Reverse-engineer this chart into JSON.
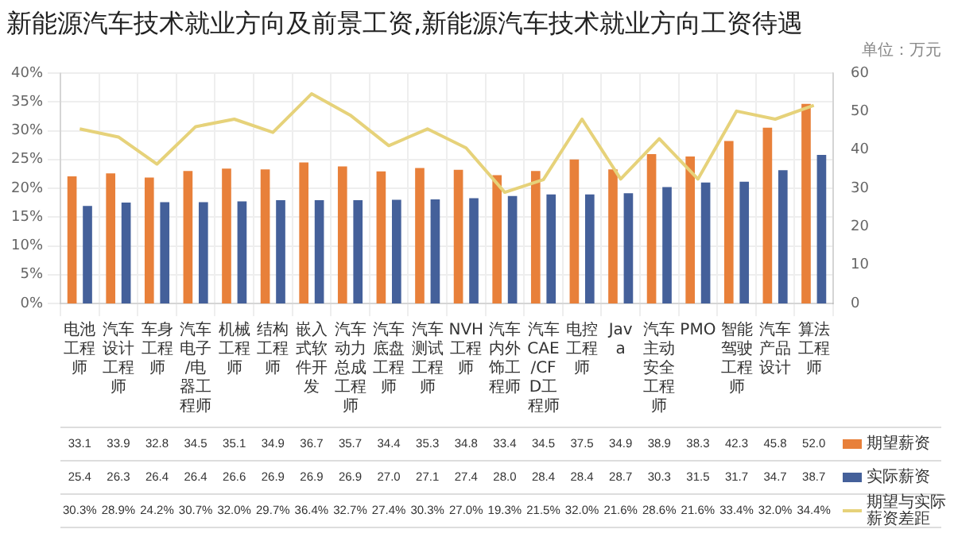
{
  "chart_data": {
    "type": "bar",
    "title": "新能源汽车技术就业方向及前景工资,新能源汽车技术就业方向工资待遇",
    "categories": [
      "电池工程师",
      "汽车设计工程师",
      "车身工程师",
      "汽车电子/电器工程师",
      "机械工程师",
      "结构工程师",
      "嵌入式软件开发",
      "汽车动力总成工程师",
      "汽车底盘工程师",
      "汽车测试工程师",
      "NVH工程师",
      "汽车内外饰工程师",
      "汽车CAE/CFD工程师",
      "电控工程师",
      "Java",
      "汽车主动安全工程师",
      "PMO",
      "智能驾驶工程师",
      "汽车产品设计",
      "算法工程师"
    ],
    "series": [
      {
        "name": "期望薪资",
        "color": "#e8803a",
        "axis": "y2",
        "values": [
          33.1,
          33.9,
          32.8,
          34.5,
          35.1,
          34.9,
          36.7,
          35.7,
          34.4,
          35.3,
          34.8,
          33.4,
          34.5,
          37.5,
          34.9,
          38.9,
          38.3,
          42.3,
          45.8,
          52.0
        ],
        "value_labels": [
          "33.1",
          "33.9",
          "32.8",
          "34.5",
          "35.1",
          "34.9",
          "36.7",
          "35.7",
          "34.4",
          "35.3",
          "34.8",
          "33.4",
          "34.5",
          "37.5",
          "34.9",
          "38.9",
          "38.3",
          "42.3",
          "45.8",
          "52.0"
        ]
      },
      {
        "name": "实际薪资",
        "color": "#44609a",
        "axis": "y2",
        "values": [
          25.4,
          26.3,
          26.4,
          26.4,
          26.6,
          26.9,
          26.9,
          26.9,
          27.0,
          27.1,
          27.4,
          28.0,
          28.4,
          28.4,
          28.7,
          30.3,
          31.5,
          31.7,
          34.7,
          38.7
        ],
        "value_labels": [
          "25.4",
          "26.3",
          "26.4",
          "26.4",
          "26.6",
          "26.9",
          "26.9",
          "26.9",
          "27.0",
          "27.1",
          "27.4",
          "28.0",
          "28.4",
          "28.4",
          "28.7",
          "30.3",
          "31.5",
          "31.7",
          "34.7",
          "38.7"
        ]
      },
      {
        "name": "期望与实际薪资差距",
        "type": "line",
        "color": "#e6d27a",
        "marker": "none",
        "values": [
          30.3,
          28.9,
          24.2,
          30.7,
          32.0,
          29.7,
          36.4,
          32.7,
          27.4,
          30.3,
          27.0,
          19.3,
          21.5,
          32.0,
          21.6,
          28.6,
          21.6,
          33.4,
          32.0,
          34.4
        ],
        "value_labels": [
          "30.3%",
          "28.9%",
          "24.2%",
          "30.7%",
          "32.0%",
          "29.7%",
          "36.4%",
          "32.7%",
          "27.4%",
          "30.3%",
          "27.0%",
          "19.3%",
          "21.5%",
          "32.0%",
          "21.6%",
          "28.6%",
          "21.6%",
          "33.4%",
          "32.0%",
          "34.4%"
        ]
      }
    ],
    "ylim": [
      0,
      40
    ],
    "yticks": [
      {
        "value": 0,
        "label": "0%"
      },
      {
        "value": 5,
        "label": "5%"
      },
      {
        "value": 10,
        "label": "10%"
      },
      {
        "value": 15,
        "label": "15%"
      },
      {
        "value": 20,
        "label": "20%"
      },
      {
        "value": 25,
        "label": "25%"
      },
      {
        "value": 30,
        "label": "30%"
      },
      {
        "value": 35,
        "label": "35%"
      },
      {
        "value": 40,
        "label": "40%"
      }
    ],
    "y2lim": [
      0,
      60
    ],
    "y2ticks": [
      0,
      10,
      20,
      30,
      40,
      50,
      60
    ],
    "grid": true,
    "legend": "bottom right",
    "annotations": [
      "单位：万元"
    ]
  }
}
